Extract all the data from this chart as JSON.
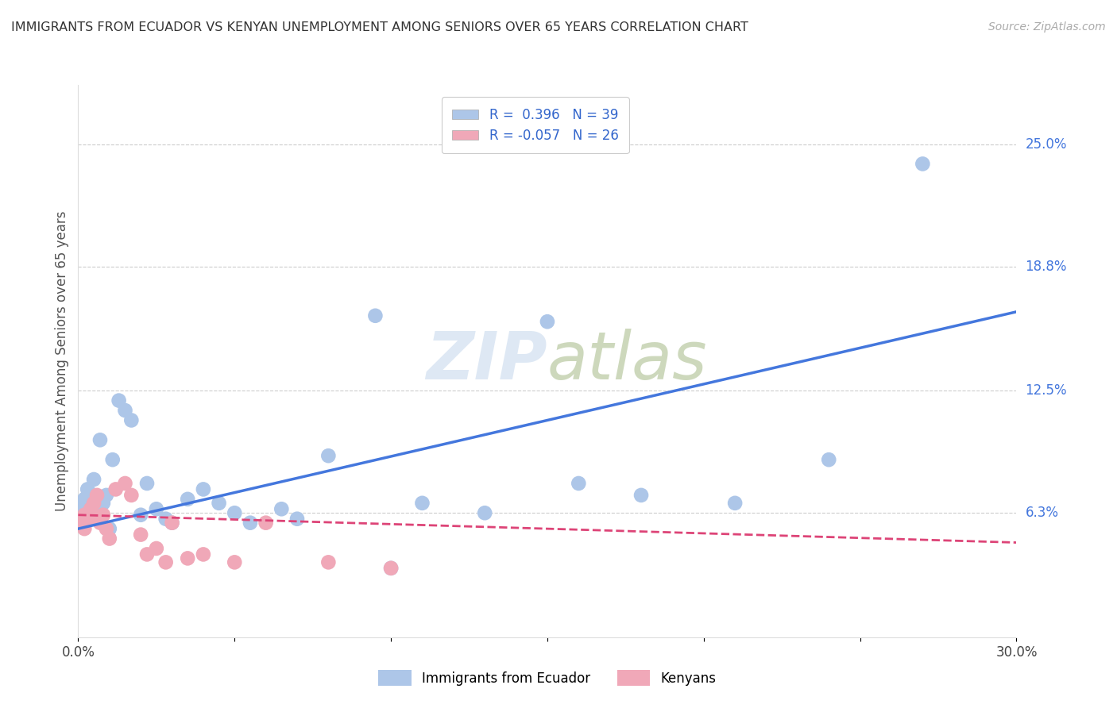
{
  "title": "IMMIGRANTS FROM ECUADOR VS KENYAN UNEMPLOYMENT AMONG SENIORS OVER 65 YEARS CORRELATION CHART",
  "source": "Source: ZipAtlas.com",
  "ylabel": "Unemployment Among Seniors over 65 years",
  "xlim": [
    0.0,
    0.3
  ],
  "ylim": [
    0.0,
    0.28
  ],
  "yticks": [
    0.063,
    0.125,
    0.188,
    0.25
  ],
  "ytick_labels": [
    "6.3%",
    "12.5%",
    "18.8%",
    "25.0%"
  ],
  "xticks": [
    0.0,
    0.05,
    0.1,
    0.15,
    0.2,
    0.25,
    0.3
  ],
  "xtick_labels": [
    "0.0%",
    "",
    "",
    "",
    "",
    "",
    "30.0%"
  ],
  "ecuador_R": 0.396,
  "ecuador_N": 39,
  "kenya_R": -0.057,
  "kenya_N": 26,
  "ecuador_color": "#adc6e8",
  "kenya_color": "#f0a8b8",
  "trendline_ecuador_color": "#4477dd",
  "trendline_kenya_color": "#dd4477",
  "watermark_color": "#d0dff0",
  "ecuador_x": [
    0.001,
    0.002,
    0.003,
    0.003,
    0.004,
    0.005,
    0.005,
    0.006,
    0.007,
    0.008,
    0.009,
    0.01,
    0.011,
    0.013,
    0.015,
    0.017,
    0.02,
    0.022,
    0.025,
    0.028,
    0.03,
    0.035,
    0.04,
    0.045,
    0.05,
    0.055,
    0.065,
    0.07,
    0.08,
    0.095,
    0.1,
    0.11,
    0.13,
    0.15,
    0.16,
    0.18,
    0.21,
    0.24,
    0.27
  ],
  "ecuador_y": [
    0.065,
    0.07,
    0.068,
    0.075,
    0.072,
    0.065,
    0.08,
    0.063,
    0.1,
    0.068,
    0.072,
    0.055,
    0.09,
    0.12,
    0.115,
    0.11,
    0.062,
    0.078,
    0.065,
    0.06,
    0.058,
    0.07,
    0.075,
    0.068,
    0.063,
    0.058,
    0.065,
    0.06,
    0.092,
    0.163,
    0.035,
    0.068,
    0.063,
    0.16,
    0.078,
    0.072,
    0.068,
    0.09,
    0.24
  ],
  "kenya_x": [
    0.001,
    0.002,
    0.002,
    0.003,
    0.004,
    0.005,
    0.005,
    0.006,
    0.007,
    0.008,
    0.009,
    0.01,
    0.012,
    0.015,
    0.017,
    0.02,
    0.022,
    0.025,
    0.028,
    0.03,
    0.035,
    0.04,
    0.05,
    0.06,
    0.08,
    0.1
  ],
  "kenya_y": [
    0.058,
    0.062,
    0.055,
    0.06,
    0.065,
    0.068,
    0.06,
    0.072,
    0.058,
    0.062,
    0.055,
    0.05,
    0.075,
    0.078,
    0.072,
    0.052,
    0.042,
    0.045,
    0.038,
    0.058,
    0.04,
    0.042,
    0.038,
    0.058,
    0.038,
    0.035
  ],
  "ecuador_trendline_x": [
    0.0,
    0.3
  ],
  "ecuador_trendline_y": [
    0.055,
    0.165
  ],
  "kenya_trendline_x": [
    0.0,
    0.3
  ],
  "kenya_trendline_y": [
    0.062,
    0.048
  ]
}
